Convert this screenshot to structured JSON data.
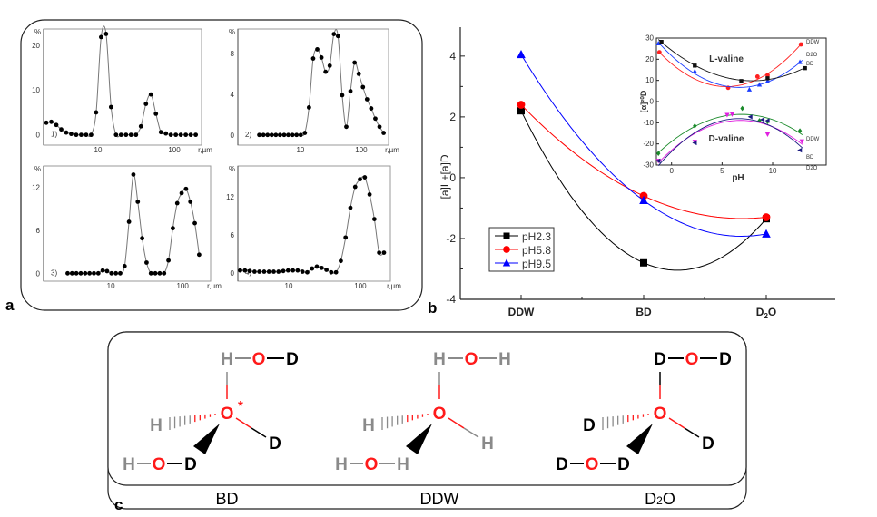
{
  "panel_labels": {
    "a": "a",
    "b": "b",
    "c": "c"
  },
  "chart_data": [
    {
      "type": "scatter-line",
      "panel": "a1",
      "label": "1)",
      "ylabel": "%",
      "xlabel": "r,µm",
      "xscale": "log",
      "xticks": [
        "10",
        "100"
      ],
      "yticks": [
        "0",
        "10",
        "20"
      ],
      "ytick_values": [
        0,
        10,
        20
      ],
      "ylim": [
        -2.3,
        23.6
      ],
      "xlim_log10": [
        0.286,
        2.357
      ],
      "r_first_um": 2.1,
      "r_last_um": 191,
      "values": [
        2.7,
        2.9,
        2.2,
        1.2,
        0.5,
        0.2,
        0,
        0,
        0,
        0,
        5.0,
        21.8,
        22.5,
        6.2,
        0,
        0,
        0,
        0,
        0,
        1.9,
        6.9,
        9.0,
        4.7,
        0.6,
        0.3,
        0,
        0,
        0,
        0,
        0,
        0
      ]
    },
    {
      "type": "scatter-line",
      "panel": "a2",
      "label": "2)",
      "ylabel": "%",
      "xlabel": "r,µm",
      "xscale": "log",
      "xticks": [
        "10",
        "100"
      ],
      "yticks": [
        "0",
        "4",
        "8"
      ],
      "ytick_values": [
        0,
        4,
        8
      ],
      "ylim": [
        -1,
        10.4
      ],
      "xlim_log10": [
        -0.03,
        2.45
      ],
      "r_first_um": 2.1,
      "r_last_um": 234,
      "values": [
        0,
        0,
        0,
        0,
        0,
        0,
        0,
        0,
        0,
        0,
        0,
        0.2,
        2.7,
        7.5,
        8.4,
        7.6,
        6.2,
        6.8,
        9.9,
        9.7,
        3.9,
        0.8,
        4.3,
        7.1,
        6.0,
        4.7,
        3.5,
        2.6,
        1.6,
        0.8,
        0.2
      ]
    },
    {
      "type": "scatter-line",
      "panel": "a3",
      "label": "3)",
      "ylabel": "%",
      "xlabel": "r,µm",
      "xscale": "log",
      "xticks": [
        "10",
        "100"
      ],
      "yticks": [
        "0",
        "6",
        "12"
      ],
      "ytick_values": [
        0,
        6,
        12
      ],
      "ylim": [
        -1.1,
        15
      ],
      "xlim_log10": [
        0.063,
        2.39
      ],
      "r_first_um": 2.5,
      "r_last_um": 170,
      "values": [
        0,
        0,
        0,
        0,
        0,
        0,
        0,
        0,
        0.4,
        0.3,
        0,
        0,
        0,
        1.0,
        7.2,
        13.8,
        10.0,
        4.9,
        1.5,
        0,
        0,
        0,
        0,
        1.8,
        6.3,
        9.8,
        11.2,
        11.8,
        10.0,
        7.0,
        2.6
      ]
    },
    {
      "type": "scatter-line",
      "panel": "a4",
      "label": "4)",
      "ylabel": "%",
      "xlabel": "r,µm",
      "xscale": "log",
      "xticks": [
        "10",
        "100"
      ],
      "yticks": [
        "0",
        "6",
        "12"
      ],
      "ytick_values": [
        0,
        6,
        12
      ],
      "ylim": [
        -1.3,
        16.9
      ],
      "xlim_log10": [
        0.29,
        2.42
      ],
      "r_first_um": 2.1,
      "r_last_um": 214,
      "values": [
        0.4,
        0.4,
        0.3,
        0.2,
        0.2,
        0.2,
        0.2,
        0.2,
        0.2,
        0.3,
        0.4,
        0.4,
        0.4,
        0.2,
        0.1,
        0.7,
        1.0,
        0.8,
        0.5,
        0.1,
        0.1,
        1.9,
        5.6,
        10.3,
        13.6,
        14.8,
        15.1,
        12.4,
        8.5,
        3.2,
        3.2
      ]
    },
    {
      "type": "line",
      "panel": "b",
      "categories": [
        "DDW",
        "BD",
        "D2O"
      ],
      "category_display": [
        [
          "DDW",
          ""
        ],
        [
          "BD",
          ""
        ],
        [
          "D",
          "2",
          "O"
        ]
      ],
      "ylabel": "[a]L+[a]D",
      "ylim": [
        -4,
        4.95
      ],
      "yticks": [
        "-4",
        "-2",
        "0",
        "2",
        "4"
      ],
      "ytick_values": [
        -4,
        -2,
        0,
        2,
        4
      ],
      "legend_position": "bottom-left",
      "series": [
        {
          "name": "pH2.3",
          "color": "#000000",
          "marker": "square",
          "values": [
            2.2,
            -2.8,
            -1.35
          ]
        },
        {
          "name": "pH5.8",
          "color": "#ff0000",
          "marker": "circle",
          "values": [
            2.4,
            -0.6,
            -1.3
          ]
        },
        {
          "name": "pH9.5",
          "color": "#0000ff",
          "marker": "triangle",
          "values": [
            4.05,
            -0.75,
            -1.85
          ]
        }
      ]
    },
    {
      "type": "scatter",
      "panel": "b-inset",
      "xlabel": "pH",
      "ylabel": "[α]²⁰D",
      "xlim": [
        -1.5,
        14.4
      ],
      "ylim": [
        -30,
        30
      ],
      "xticks": [
        "0",
        "5",
        "10"
      ],
      "xtick_values": [
        0,
        5,
        10
      ],
      "yticks": [
        "30",
        "20",
        "10",
        "0",
        "-10",
        "-20",
        "-30"
      ],
      "ytick_values": [
        30,
        20,
        10,
        0,
        -10,
        -20,
        -30
      ],
      "annotations": [
        "L-valine",
        "D-valine"
      ],
      "series": [
        {
          "name": "DDW",
          "group": "L",
          "color": "#ff2020",
          "marker": "circle",
          "points": [
            [
              -1.2,
              23.3
            ],
            [
              5.6,
              6.5
            ],
            [
              8.5,
              11.8
            ],
            [
              9.5,
              12.5
            ],
            [
              12.8,
              27
            ]
          ]
        },
        {
          "name": "D2O",
          "group": "L",
          "color": "#1a3cff",
          "marker": "triangle",
          "points": [
            [
              -1.3,
              27.5
            ],
            [
              2.3,
              14.3
            ],
            [
              7.7,
              5.7
            ],
            [
              8.7,
              8
            ],
            [
              9.5,
              9.7
            ],
            [
              12.7,
              18.7
            ]
          ]
        },
        {
          "name": "BD",
          "group": "L",
          "color": "#111111",
          "marker": "square",
          "points": [
            [
              -1,
              28.2
            ],
            [
              2.3,
              17
            ],
            [
              6.9,
              9.7
            ],
            [
              9.5,
              11
            ],
            [
              13.2,
              15.8
            ]
          ]
        },
        {
          "name": "DDW",
          "group": "D",
          "color": "#1a8a2a",
          "marker": "diamond",
          "points": [
            [
              -1.3,
              -24.5
            ],
            [
              2.3,
              -11.5
            ],
            [
              7,
              -3.2
            ],
            [
              8.7,
              -9
            ],
            [
              9.5,
              -9.5
            ],
            [
              12.7,
              -13.8
            ]
          ]
        },
        {
          "name": "BD",
          "group": "D",
          "color": "#e020e0",
          "marker": "triangle-down",
          "points": [
            [
              -1.3,
              -28
            ],
            [
              2.3,
              -19
            ],
            [
              5.5,
              -6.3
            ],
            [
              6,
              -6
            ],
            [
              9.5,
              -15.5
            ],
            [
              12.9,
              -18.8
            ]
          ]
        },
        {
          "name": "D2O",
          "group": "D",
          "color": "#1a1a80",
          "marker": "triangle-left",
          "points": [
            [
              -1.3,
              -28
            ],
            [
              2.3,
              -19.5
            ],
            [
              7.8,
              -7.2
            ],
            [
              9,
              -8.5
            ],
            [
              9.5,
              -9
            ],
            [
              12.7,
              -23
            ]
          ]
        }
      ]
    }
  ],
  "panel_c": {
    "molecules": [
      {
        "caption": "BD",
        "caption_sub": "",
        "caption_tail": "",
        "top": [
          "H",
          "O",
          "D"
        ],
        "center": "O",
        "star": "*",
        "left": "H",
        "right": "D",
        "bottom": [
          "H",
          "O",
          "D"
        ]
      },
      {
        "caption": "DDW",
        "caption_sub": "",
        "caption_tail": "",
        "top": [
          "H",
          "O",
          "H"
        ],
        "center": "O",
        "star": "",
        "left": "H",
        "right": "H",
        "bottom": [
          "H",
          "O",
          "H"
        ]
      },
      {
        "caption": "D",
        "caption_sub": "2",
        "caption_tail": "O",
        "top": [
          "D",
          "O",
          "D"
        ],
        "center": "O",
        "star": "",
        "left": "D",
        "right": "D",
        "bottom": [
          "D",
          "O",
          "D"
        ]
      }
    ]
  }
}
